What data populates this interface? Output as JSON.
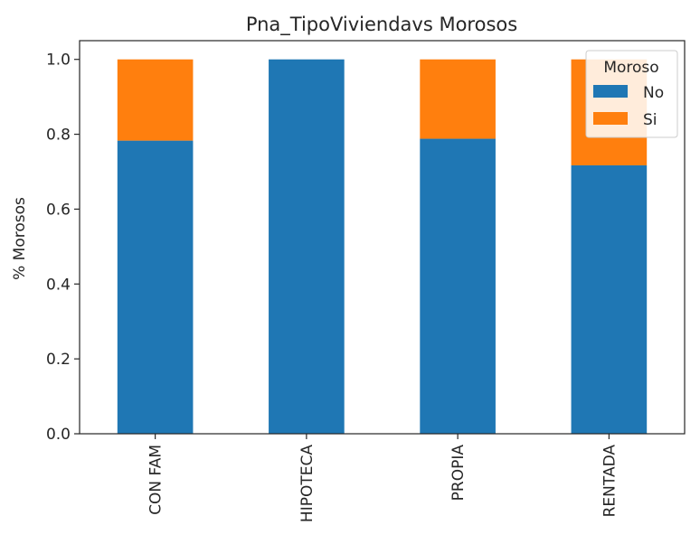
{
  "chart_data": {
    "type": "bar",
    "stacked": true,
    "title": "Pna_TipoViviendavs Morosos",
    "xlabel": "",
    "ylabel": "% Morosos",
    "categories": [
      "CON FAM",
      "HIPOTECA",
      "PROPIA",
      "RENTADA"
    ],
    "series": [
      {
        "name": "No",
        "values": [
          0.783,
          1.0,
          0.788,
          0.717
        ],
        "color": "#1f77b4"
      },
      {
        "name": "Si",
        "values": [
          0.217,
          0.0,
          0.212,
          0.283
        ],
        "color": "#ff7f0e"
      }
    ],
    "ylim": [
      0,
      1.05
    ],
    "yticks": [
      "0.0",
      "0.2",
      "0.4",
      "0.6",
      "0.8",
      "1.0"
    ],
    "grid": false,
    "legend": {
      "title": "Moroso",
      "position": "top-right",
      "entries": [
        "No",
        "Si"
      ]
    }
  }
}
